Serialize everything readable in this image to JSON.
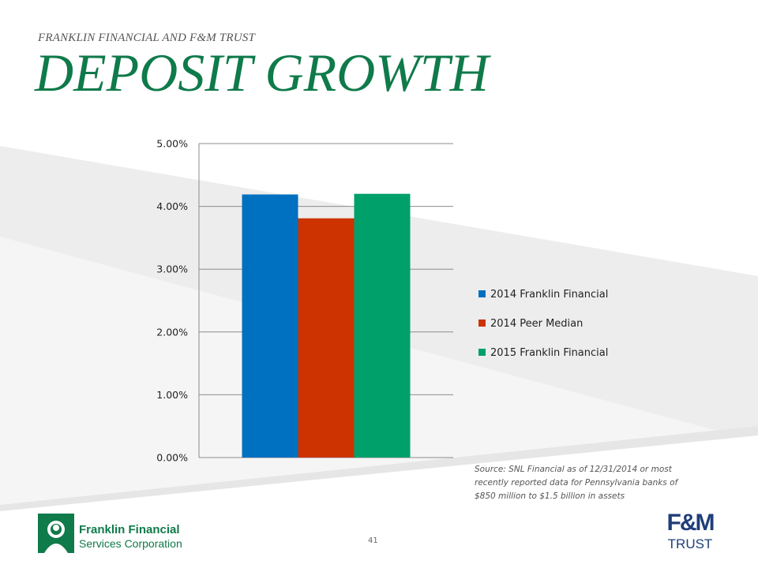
{
  "header": {
    "subtitle": "FRANKLIN FINANCIAL AND F&M TRUST",
    "title": "DEPOSIT GROWTH"
  },
  "chart_data": {
    "type": "bar",
    "title": "",
    "xlabel": "",
    "ylabel": "",
    "categories": [
      ""
    ],
    "ylim": [
      0,
      5
    ],
    "y_ticks": [
      "0.00%",
      "1.00%",
      "2.00%",
      "3.00%",
      "4.00%",
      "5.00%"
    ],
    "grid": true,
    "legend_position": "right",
    "series": [
      {
        "name": "2014 Franklin Financial",
        "values": [
          4.19
        ],
        "color": "#0070c0"
      },
      {
        "name": "2014 Peer Median",
        "values": [
          3.81
        ],
        "color": "#cc3300"
      },
      {
        "name": "2015 Franklin Financial",
        "values": [
          4.2
        ],
        "color": "#00a06a"
      }
    ]
  },
  "source_note": "Source: SNL Financial as of 12/31/2014 or most recently reported data for Pennsylvania banks of $850 million to $1.5 billion in assets",
  "page_number": "41",
  "footer": {
    "left_logo": {
      "line1": "Franklin Financial",
      "line2": "Services Corporation",
      "icon": "franklin-portrait-icon"
    },
    "right_logo": {
      "line1": "F&M",
      "line2": "TRUST"
    }
  }
}
